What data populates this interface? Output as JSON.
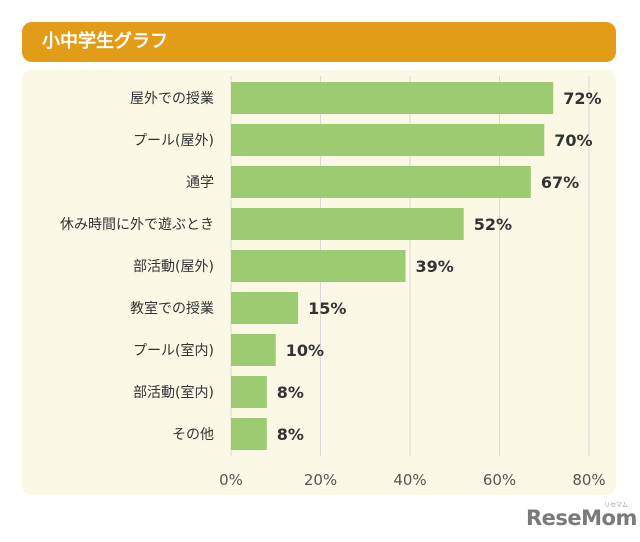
{
  "chart_data": {
    "type": "bar",
    "orientation": "horizontal",
    "title": "小中学生グラフ",
    "categories": [
      "屋外での授業",
      "プール(屋外)",
      "通学",
      "休み時間に外で遊ぶとき",
      "部活動(屋外)",
      "教室での授業",
      "プール(室内)",
      "部活動(室内)",
      "その他"
    ],
    "values": [
      72,
      70,
      67,
      52,
      39,
      15,
      10,
      8,
      8
    ],
    "value_labels": [
      "72%",
      "70%",
      "67%",
      "52%",
      "39%",
      "15%",
      "10%",
      "8%",
      "8%"
    ],
    "xlim": [
      0,
      80
    ],
    "xticks": [
      0,
      20,
      40,
      60,
      80
    ],
    "xtick_labels": [
      "0%",
      "20%",
      "40%",
      "60%",
      "80%"
    ],
    "grid": true,
    "colors": {
      "bar": "#9ccb72",
      "title_bg": "#e39c17",
      "panel_bg": "#fbf9e6",
      "grid": "#d9d9d9"
    }
  },
  "branding": {
    "logo": "ReseMom",
    "logo_sup": "リセマム"
  }
}
